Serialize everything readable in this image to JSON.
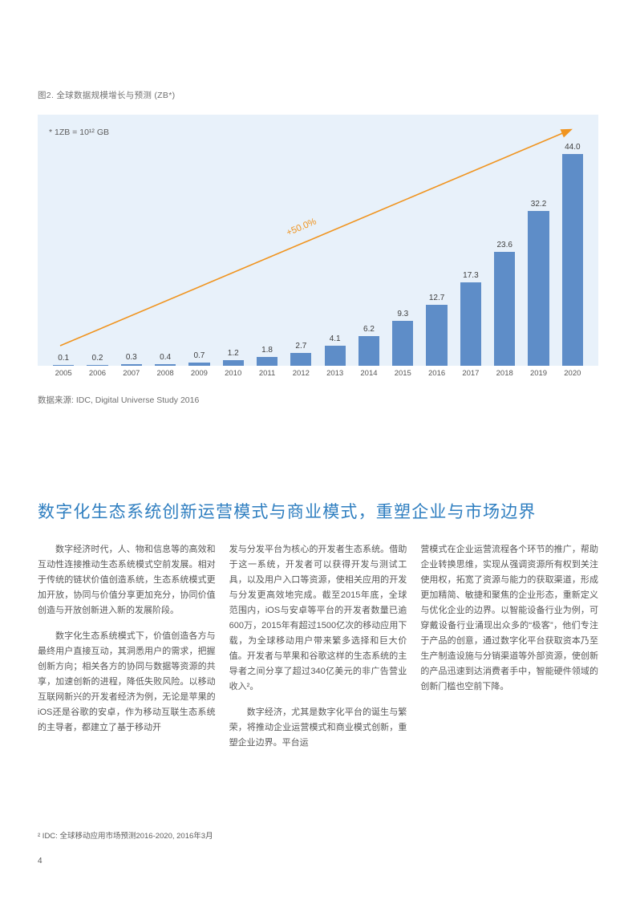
{
  "colors": {
    "heading": "#2e7ec0",
    "bar": "#5e8dc8",
    "chart_bg": "#e8f1fa",
    "arrow": "#f0941f",
    "text": "#575757"
  },
  "figure": {
    "caption": "图2. 全球数据规模增长与预测 (ZB*)",
    "note": "* 1ZB = 10¹² GB",
    "growth_label": "+50.0%",
    "source": "数据来源: IDC, Digital Universe Study 2016"
  },
  "chart_data": {
    "type": "bar",
    "title": "图2. 全球数据规模增长与预测 (ZB*)",
    "unit": "ZB",
    "categories": [
      "2005",
      "2006",
      "2007",
      "2008",
      "2009",
      "2010",
      "2011",
      "2012",
      "2013",
      "2014",
      "2015",
      "2016",
      "2017",
      "2018",
      "2019",
      "2020"
    ],
    "values": [
      0.1,
      0.2,
      0.3,
      0.4,
      0.7,
      1.2,
      1.8,
      2.7,
      4.1,
      6.2,
      9.3,
      12.7,
      17.3,
      23.6,
      32.2,
      44.0
    ],
    "annotation": "+50.0%",
    "xlabel": "",
    "ylabel": "",
    "ylim": [
      0,
      44
    ],
    "grid": false,
    "legend": false,
    "data_labels": true
  },
  "section": {
    "heading": "数字化生态系统创新运营模式与商业模式，重塑企业与市场边界",
    "columns": [
      {
        "p1": "数字经济时代，人、物和信息等的高效和互动性连接推动生态系统模式空前发展。相对于传统的链状价值创造系统，生态系统模式更加开放，协同与价值分享更加充分，协同价值创造与开放创新进入新的发展阶段。",
        "p2": "数字化生态系统模式下，价值创造各方与最终用户直接互动，其洞悉用户的需求，把握创新方向；相关各方的协同与数据等资源的共享，加速创新的进程，降低失败风险。以移动互联网新兴的开发者经济为例，无论是苹果的iOS还是谷歌的安卓，作为移动互联生态系统的主导者，都建立了基于移动开"
      },
      {
        "p1": "发与分发平台为核心的开发者生态系统。借助于这一系统，开发者可以获得开发与测试工具，以及用户入口等资源，使相关应用的开发与分发更高效地完成。截至2015年底，全球范围内，iOS与安卓等平台的开发者数量已逾600万，2015年有超过1500亿次的移动应用下载，为全球移动用户带来繁多选择和巨大价值。开发者与苹果和谷歌这样的生态系统的主导者之间分享了超过340亿美元的非广告营业收入²。",
        "p2": "数字经济，尤其是数字化平台的诞生与繁荣，将推动企业运营模式和商业模式创新，重塑企业边界。平台运"
      },
      {
        "p1": "营模式在企业运营流程各个环节的推广，帮助企业转换思维，实现从强调资源所有权到关注使用权，拓宽了资源与能力的获取渠道，形成更加精简、敏捷和聚焦的企业形态，重新定义与优化企业的边界。以智能设备行业为例，可穿戴设备行业涌现出众多的“极客”，他们专注于产品的创意，通过数字化平台获取资本乃至生产制造设施与分销渠道等外部资源，使创新的产品迅速到达消费者手中，智能硬件领域的创新门槛也空前下降。"
      }
    ]
  },
  "footnote": "² IDC: 全球移动应用市场预测2016-2020, 2016年3月",
  "page": {
    "number": "4"
  }
}
